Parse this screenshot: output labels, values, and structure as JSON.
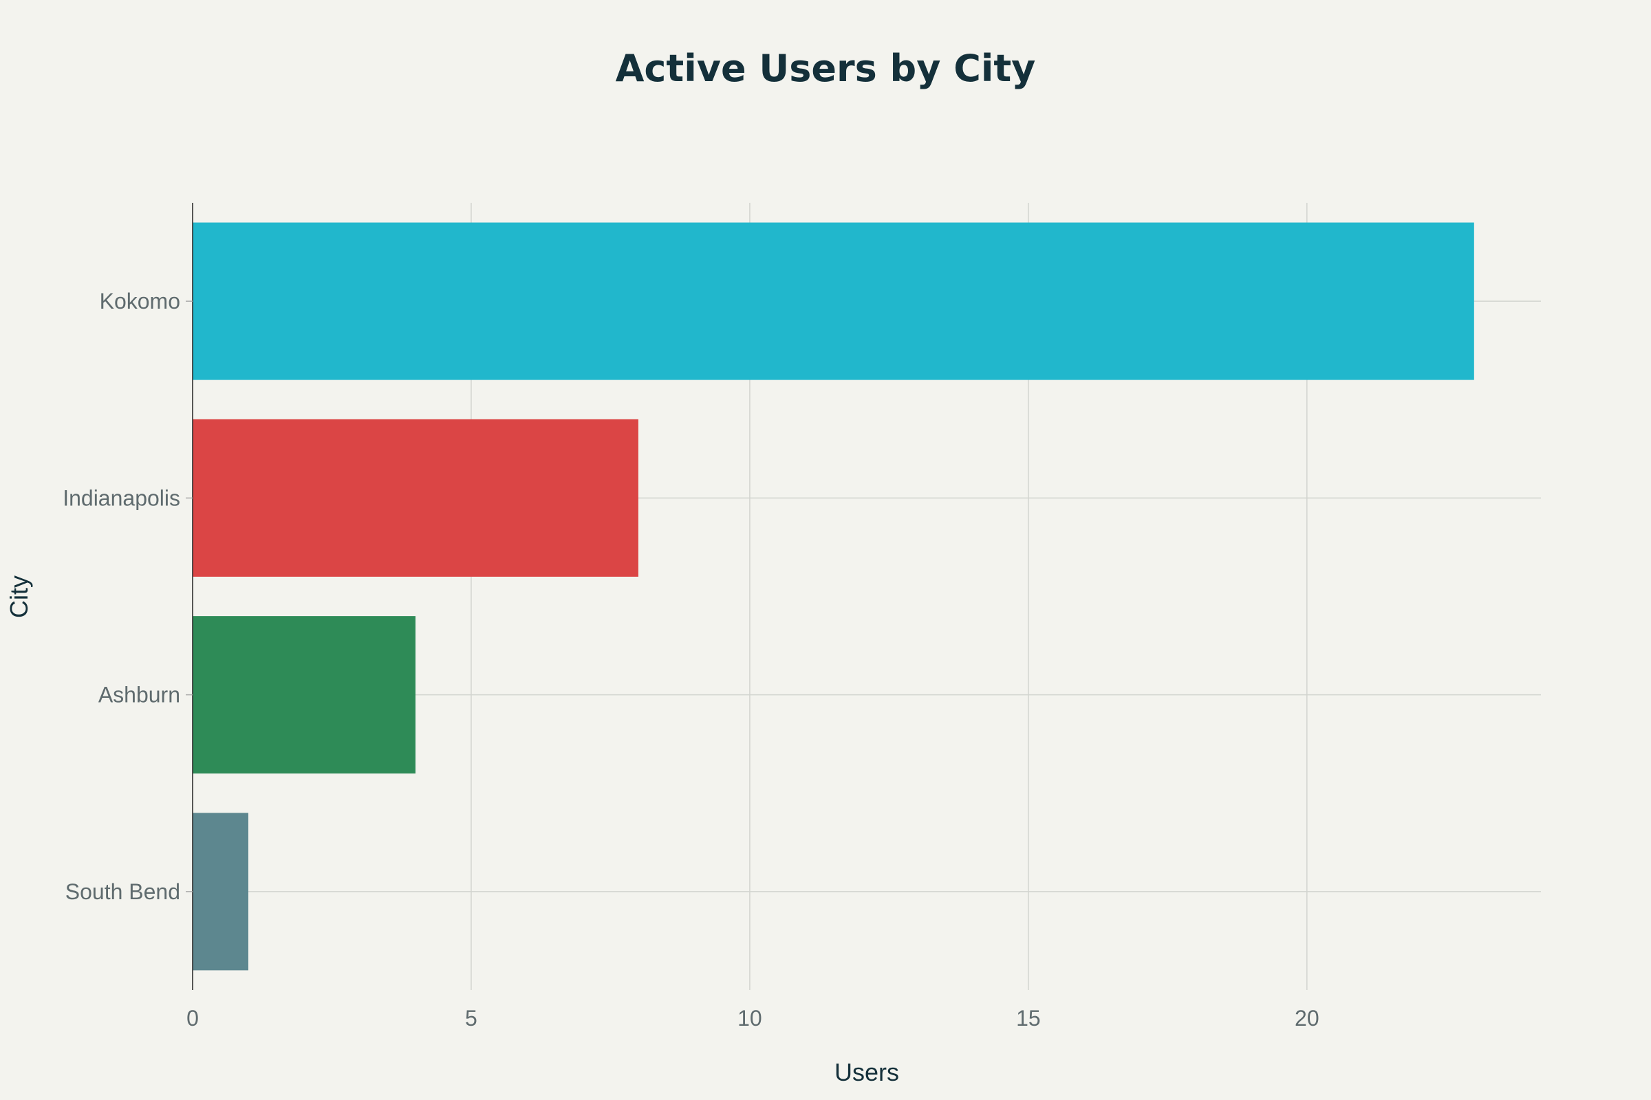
{
  "chart_data": {
    "type": "bar",
    "orientation": "horizontal",
    "title": "Active Users by City",
    "xlabel": "Users",
    "ylabel": "City",
    "categories": [
      "Kokomo",
      "Indianapolis",
      "Ashburn",
      "South Bend"
    ],
    "values": [
      23,
      8,
      4,
      1
    ],
    "colors": [
      "#21b7cc",
      "#db4545",
      "#2e8b57",
      "#5d878f"
    ],
    "xlim": [
      0,
      24.2
    ],
    "xticks": [
      0,
      5,
      10,
      15,
      20
    ],
    "grid": true,
    "legend": "none"
  }
}
